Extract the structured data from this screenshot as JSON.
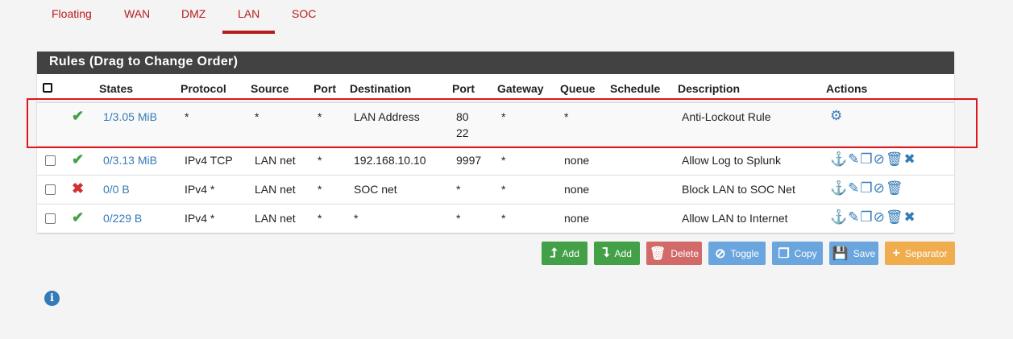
{
  "tabs": [
    {
      "label": "Floating"
    },
    {
      "label": "WAN"
    },
    {
      "label": "DMZ"
    },
    {
      "label": "LAN",
      "active": true
    },
    {
      "label": "SOC"
    }
  ],
  "panel": {
    "title": "Rules (Drag to Change Order)"
  },
  "columns": {
    "states": "States",
    "protocol": "Protocol",
    "source": "Source",
    "port": "Port",
    "destination": "Destination",
    "dport": "Port",
    "gateway": "Gateway",
    "queue": "Queue",
    "schedule": "Schedule",
    "description": "Description",
    "actions": "Actions"
  },
  "rows": [
    {
      "status": "pass",
      "states": "1/3.05 MiB",
      "protocol": "*",
      "source": "*",
      "port": "*",
      "destination": "LAN Address",
      "dport": "80",
      "dport2": "22",
      "gateway": "*",
      "queue": "*",
      "schedule": "",
      "description": "Anti-Lockout Rule"
    },
    {
      "status": "pass",
      "states": "0/3.13 MiB",
      "protocol": "IPv4 TCP",
      "source": "LAN net",
      "port": "*",
      "destination": "192.168.10.10",
      "dport": "9997",
      "gateway": "*",
      "queue": "none",
      "schedule": "",
      "description": "Allow Log to Splunk"
    },
    {
      "status": "block",
      "states": "0/0 B",
      "protocol": "IPv4 *",
      "source": "LAN net",
      "port": "*",
      "destination": "SOC net",
      "dport": "*",
      "gateway": "*",
      "queue": "none",
      "schedule": "",
      "description": "Block LAN to SOC Net"
    },
    {
      "status": "pass",
      "states": "0/229 B",
      "protocol": "IPv4 *",
      "source": "LAN net",
      "port": "*",
      "destination": "*",
      "dport": "*",
      "gateway": "*",
      "queue": "none",
      "schedule": "",
      "description": "Allow LAN to Internet"
    }
  ],
  "buttons": {
    "add_top": "Add",
    "add_bottom": "Add",
    "delete": "Delete",
    "toggle": "Toggle",
    "copy": "Copy",
    "save": "Save",
    "separator": "Separator"
  },
  "colors": {
    "accent": "#b71c1c",
    "green": "#43a047",
    "red": "#d9534f",
    "blue": "#5b9bd5",
    "orange": "#f0ad4e",
    "link": "#337ab7"
  }
}
